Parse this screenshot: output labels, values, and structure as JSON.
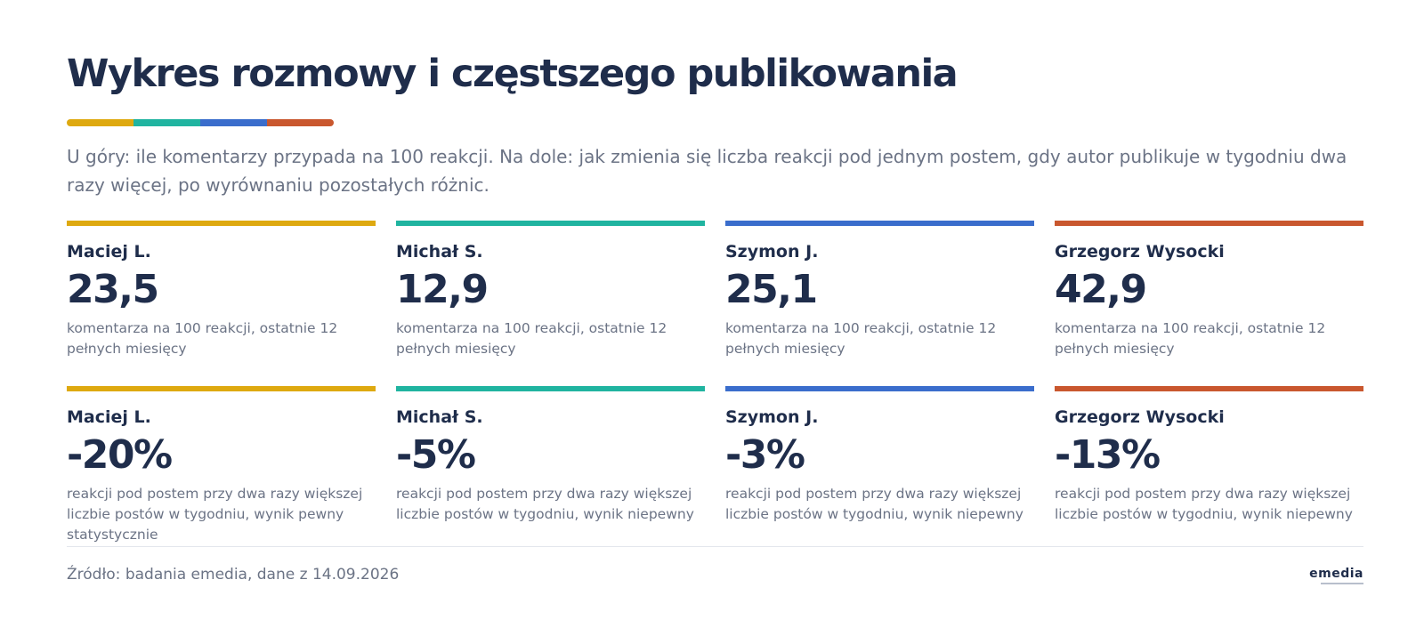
{
  "title": "Wykres rozmowy i częstszego publikowania",
  "subtitle": "U góry: ile komentarzy przypada na 100 reakcji. Na dole: jak zmienia się liczba reakcji pod jednym postem, gdy autor publikuje w tygodniu dwa razy więcej, po wyrównaniu pozostałych różnic.",
  "colors": {
    "yellow": "#dea910",
    "teal": "#20b4a0",
    "blue": "#3a6dcc",
    "orange": "#c9572e",
    "text_dark": "#1f2d4b",
    "text_muted": "#6b7385"
  },
  "chart_data": [
    {
      "type": "table",
      "metric": "komentarze na 100 reakcji",
      "cards": [
        {
          "name": "Maciej L.",
          "value": "23,5",
          "numeric": 23.5,
          "desc": "komentarza na 100 reakcji, ostatnie 12 pełnych miesięcy",
          "color": "#dea910"
        },
        {
          "name": "Michał S.",
          "value": "12,9",
          "numeric": 12.9,
          "desc": "komentarza na 100 reakcji, ostatnie 12 pełnych miesięcy",
          "color": "#20b4a0"
        },
        {
          "name": "Szymon J.",
          "value": "25,1",
          "numeric": 25.1,
          "desc": "komentarza na 100 reakcji, ostatnie 12 pełnych miesięcy",
          "color": "#3a6dcc"
        },
        {
          "name": "Grzegorz Wysocki",
          "value": "42,9",
          "numeric": 42.9,
          "desc": "komentarza na 100 reakcji, ostatnie 12 pełnych miesięcy",
          "color": "#c9572e"
        }
      ]
    },
    {
      "type": "table",
      "metric": "zmiana reakcji pod postem",
      "cards": [
        {
          "name": "Maciej L.",
          "value": "-20%",
          "numeric": -20,
          "desc": "reakcji pod postem przy dwa razy większej liczbie postów w tygodniu, wynik pewny statystycznie",
          "color": "#dea910"
        },
        {
          "name": "Michał S.",
          "value": "-5%",
          "numeric": -5,
          "desc": "reakcji pod postem przy dwa razy większej liczbie postów w tygodniu, wynik niepewny",
          "color": "#20b4a0"
        },
        {
          "name": "Szymon J.",
          "value": "-3%",
          "numeric": -3,
          "desc": "reakcji pod postem przy dwa razy większej liczbie postów w tygodniu, wynik niepewny",
          "color": "#3a6dcc"
        },
        {
          "name": "Grzegorz Wysocki",
          "value": "-13%",
          "numeric": -13,
          "desc": "reakcji pod postem przy dwa razy większej liczbie postów w tygodniu, wynik niepewny",
          "color": "#c9572e"
        }
      ]
    }
  ],
  "source": "Źródło: badania emedia, dane z 14.09.2026",
  "logo": {
    "wordmark": "emedia"
  }
}
